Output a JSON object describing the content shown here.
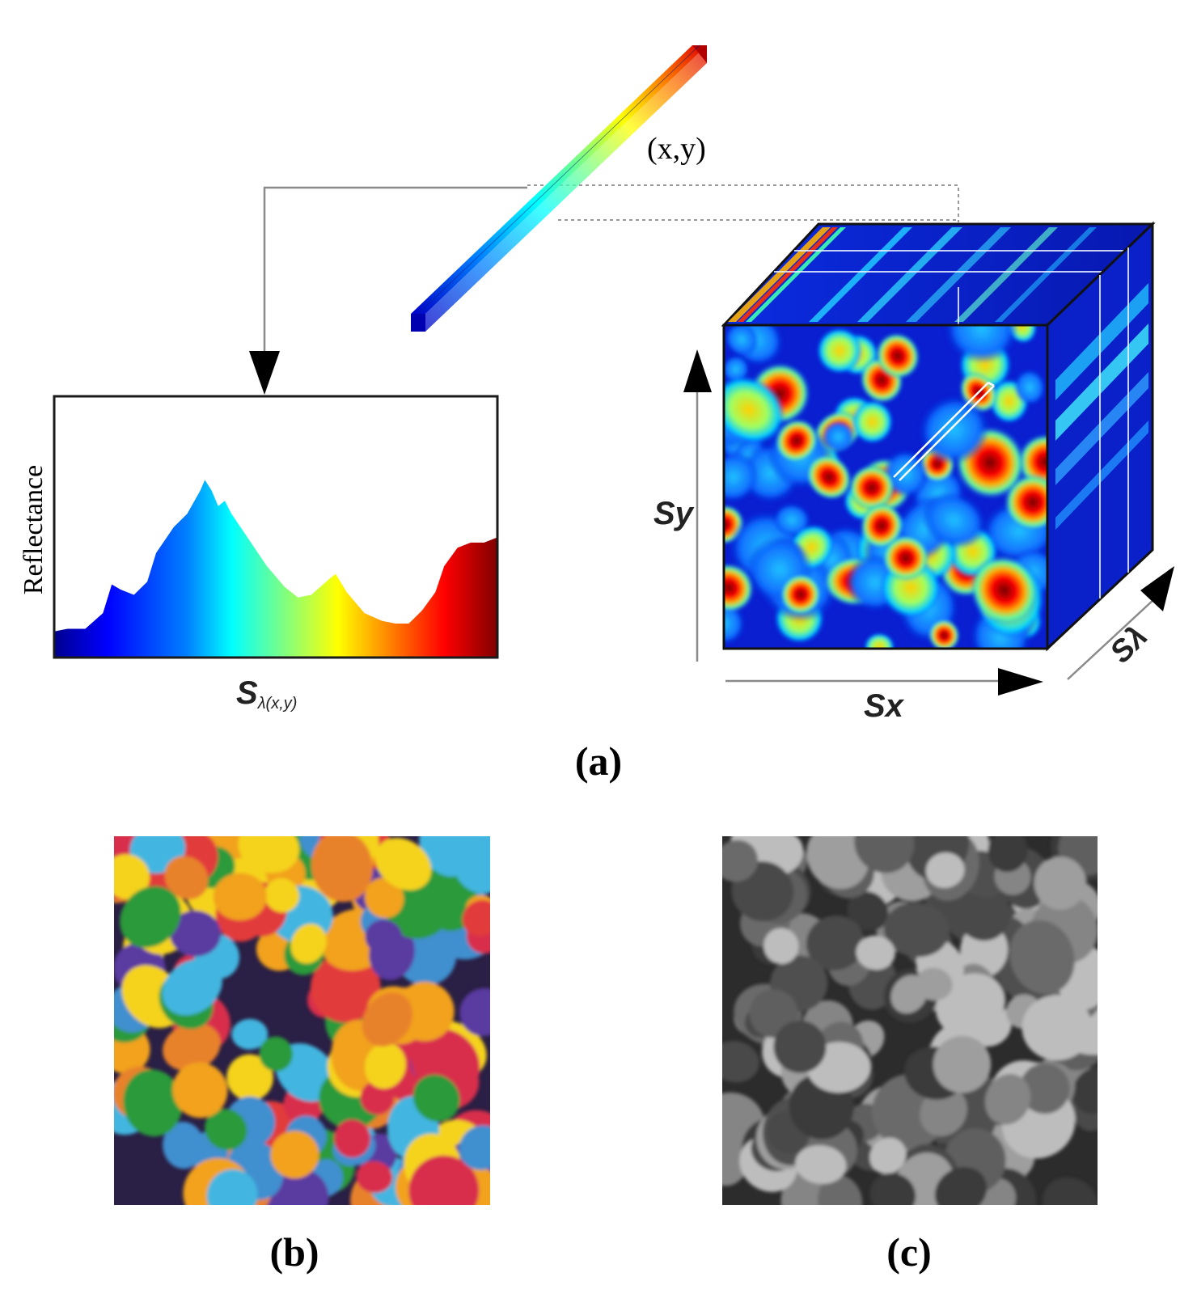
{
  "panel_a": {
    "caption": "(a)",
    "coord_label": "(x,y)",
    "spectrum": {
      "y_label": "Reflectance",
      "x_label_main": "S",
      "x_label_sub": "λ(x,y)",
      "curve": [
        [
          0,
          0.1
        ],
        [
          0.03,
          0.11
        ],
        [
          0.07,
          0.11
        ],
        [
          0.11,
          0.17
        ],
        [
          0.13,
          0.28
        ],
        [
          0.15,
          0.26
        ],
        [
          0.18,
          0.24
        ],
        [
          0.21,
          0.29
        ],
        [
          0.23,
          0.4
        ],
        [
          0.27,
          0.5
        ],
        [
          0.3,
          0.55
        ],
        [
          0.33,
          0.64
        ],
        [
          0.34,
          0.68
        ],
        [
          0.355,
          0.64
        ],
        [
          0.37,
          0.58
        ],
        [
          0.385,
          0.6
        ],
        [
          0.4,
          0.55
        ],
        [
          0.44,
          0.45
        ],
        [
          0.48,
          0.35
        ],
        [
          0.52,
          0.27
        ],
        [
          0.55,
          0.23
        ],
        [
          0.58,
          0.24
        ],
        [
          0.62,
          0.3
        ],
        [
          0.635,
          0.32
        ],
        [
          0.66,
          0.25
        ],
        [
          0.7,
          0.17
        ],
        [
          0.74,
          0.14
        ],
        [
          0.77,
          0.13
        ],
        [
          0.8,
          0.13
        ],
        [
          0.83,
          0.18
        ],
        [
          0.86,
          0.25
        ],
        [
          0.88,
          0.35
        ],
        [
          0.91,
          0.42
        ],
        [
          0.94,
          0.44
        ],
        [
          0.97,
          0.44
        ],
        [
          1,
          0.46
        ]
      ]
    },
    "cube": {
      "x_axis": "Sx",
      "y_axis": "Sy",
      "z_axis": "Sλ"
    }
  },
  "panel_b": {
    "caption": "(b)"
  },
  "panel_c": {
    "caption": "(c)"
  },
  "colors": {
    "jet": [
      "#00008f",
      "#0000ff",
      "#0080ff",
      "#00ffff",
      "#80ff80",
      "#ffff00",
      "#ff8000",
      "#ff0000",
      "#800000"
    ],
    "cube_bg": "#0a1fd0",
    "line": "#8a8a8a"
  }
}
